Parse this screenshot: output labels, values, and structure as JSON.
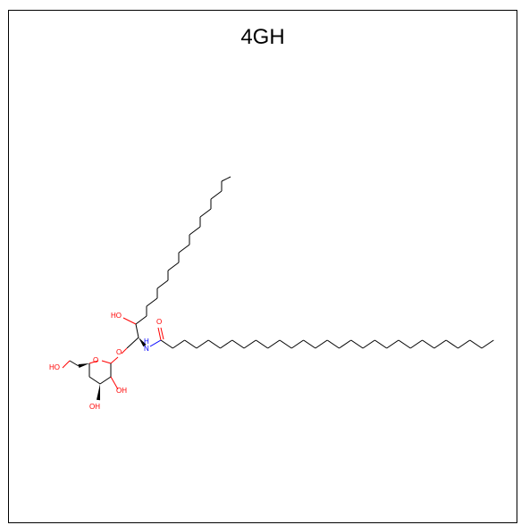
{
  "title": "4GH",
  "atom_labels": {
    "ho_chain": "HO",
    "o_carbonyl": "O",
    "nh": "H",
    "n": "N",
    "o_link": "O",
    "o_ring": "O",
    "ho_ch2": "HO",
    "oh_c2": "OH",
    "oh_c3": "OH"
  },
  "colors": {
    "bond": "#000000",
    "oxygen": "#ff0000",
    "nitrogen": "#0000ff"
  }
}
